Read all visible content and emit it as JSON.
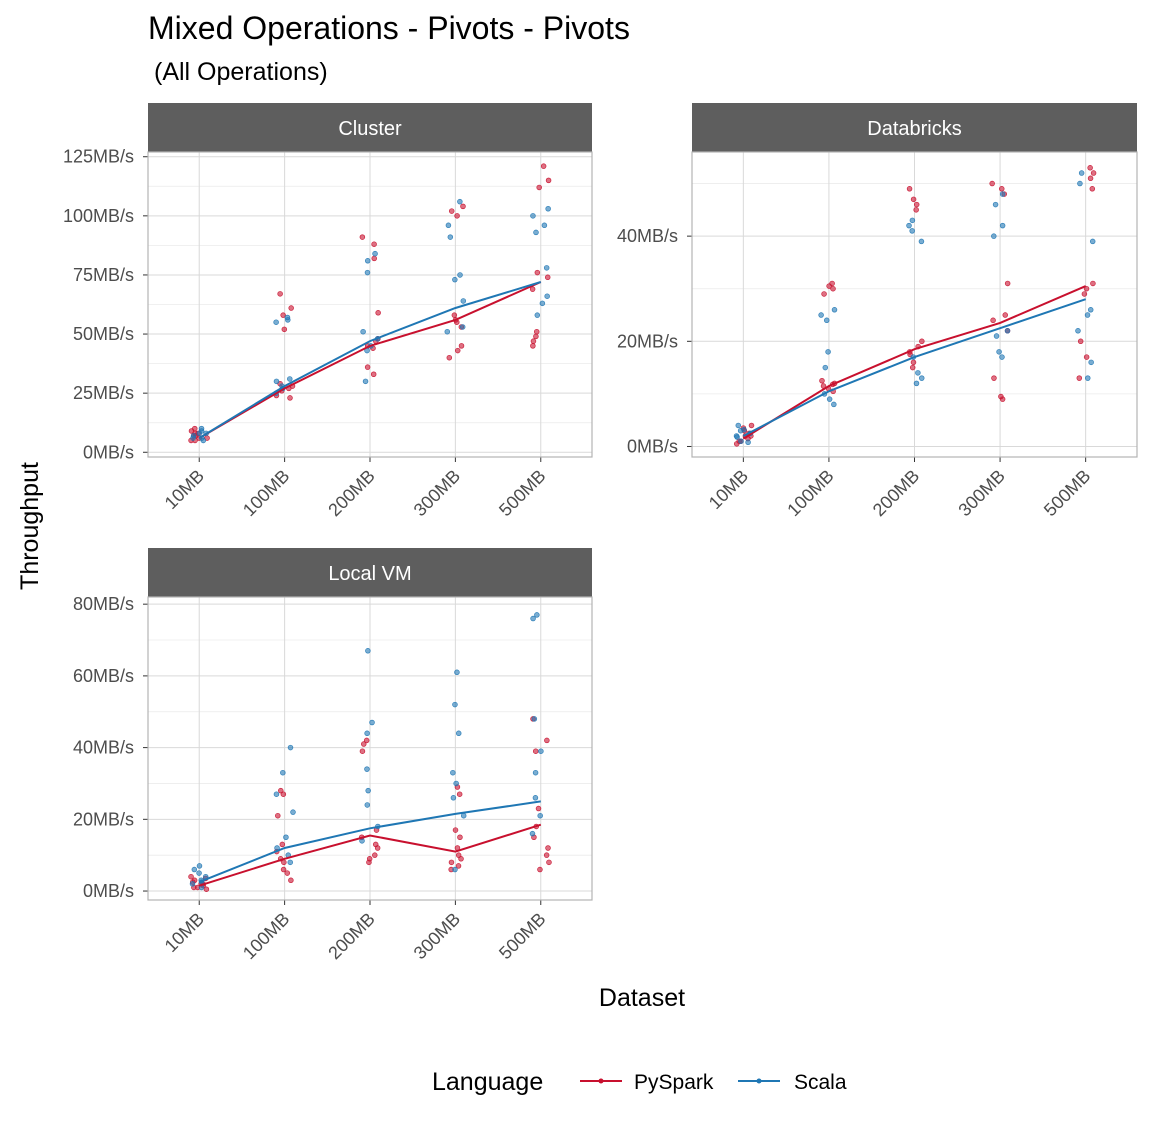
{
  "title": "Mixed Operations - Pivots - Pivots",
  "subtitle": "(All Operations)",
  "xlabel": "Dataset",
  "ylabel": "Throughput",
  "legend": {
    "title": "Language",
    "items": [
      {
        "label": "PySpark",
        "color": "#c8102e"
      },
      {
        "label": "Scala",
        "color": "#1f77b4"
      }
    ]
  },
  "chart_data": {
    "type": "line",
    "categories": [
      "10MB",
      "100MB",
      "200MB",
      "300MB",
      "500MB"
    ],
    "panels": [
      {
        "name": "Cluster",
        "unit": "MB/s",
        "ylim": [
          0,
          125
        ],
        "yticks": [
          0,
          25,
          50,
          75,
          100,
          125
        ],
        "ytick_labels": [
          "0MB/s",
          "25MB/s",
          "50MB/s",
          "75MB/s",
          "100MB/s",
          "125MB/s"
        ],
        "series": [
          {
            "name": "PySpark",
            "values": [
              6,
              27,
              45,
              56,
              72
            ],
            "points": [
              [
                8,
                6,
                10,
                5,
                7,
                9,
                6,
                5,
                8,
                7
              ],
              [
                29,
                26,
                24,
                28,
                23,
                67,
                61,
                58,
                52,
                27
              ],
              [
                45,
                36,
                33,
                88,
                82,
                91,
                59,
                47,
                48,
                44
              ],
              [
                104,
                102,
                100,
                43,
                40,
                45,
                56,
                53,
                55,
                58
              ],
              [
                115,
                112,
                121,
                74,
                76,
                69,
                51,
                49,
                47,
                45
              ]
            ]
          },
          {
            "name": "Scala",
            "values": [
              6,
              28,
              47,
              61,
              72
            ],
            "points": [
              [
                9,
                8,
                6,
                7,
                5,
                10,
                6,
                8
              ],
              [
                30,
                28,
                25,
                57,
                55,
                56,
                27,
                31
              ],
              [
                84,
                81,
                76,
                51,
                48,
                30,
                43,
                45
              ],
              [
                106,
                96,
                91,
                75,
                73,
                64,
                53,
                51
              ],
              [
                103,
                100,
                96,
                93,
                78,
                66,
                63,
                58
              ]
            ]
          }
        ]
      },
      {
        "name": "Databricks",
        "unit": "MB/s",
        "ylim": [
          0,
          55
        ],
        "yticks": [
          0,
          20,
          40
        ],
        "ytick_labels": [
          "0MB/s",
          "20MB/s",
          "40MB/s"
        ],
        "series": [
          {
            "name": "PySpark",
            "values": [
              1.5,
              11.5,
              18.5,
              23.5,
              30.5
            ],
            "points": [
              [
                1,
                2,
                3,
                4,
                1.5,
                2.5,
                0.5,
                3.5,
                2,
                1
              ],
              [
                11,
                12,
                11.5,
                30,
                31,
                29,
                30.5,
                10.5,
                12.5,
                11.8
              ],
              [
                18,
                19,
                20,
                45,
                47,
                49,
                46,
                16,
                15,
                17.5
              ],
              [
                50,
                49,
                48,
                25,
                24,
                22,
                9,
                9.5,
                31,
                13
              ],
              [
                53,
                52,
                51,
                49,
                31,
                30,
                29,
                20,
                17,
                13
              ]
            ]
          },
          {
            "name": "Scala",
            "values": [
              2,
              10.5,
              17,
              22.5,
              28
            ],
            "points": [
              [
                2,
                3,
                1,
                4,
                2.5,
                3.2,
                1.8,
                0.8
              ],
              [
                10,
                9,
                8,
                25,
                24,
                26,
                18,
                15
              ],
              [
                41,
                42,
                39,
                43,
                17,
                13,
                14,
                12
              ],
              [
                48,
                46,
                42,
                40,
                22,
                21,
                18,
                17
              ],
              [
                50,
                52,
                39,
                26,
                25,
                22,
                16,
                13
              ]
            ]
          }
        ]
      },
      {
        "name": "Local VM",
        "unit": "MB/s",
        "ylim": [
          0,
          80
        ],
        "yticks": [
          0,
          20,
          40,
          60,
          80
        ],
        "ytick_labels": [
          "0MB/s",
          "20MB/s",
          "40MB/s",
          "60MB/s",
          "80MB/s"
        ],
        "series": [
          {
            "name": "PySpark",
            "values": [
              1.5,
              9,
              15.5,
              11,
              18.5
            ],
            "points": [
              [
                1,
                2,
                3,
                4,
                1.5,
                2.5,
                0.5,
                3.5,
                2,
                1
              ],
              [
                28,
                27,
                21,
                8,
                5,
                3,
                9,
                11,
                13,
                6
              ],
              [
                42,
                41,
                39,
                15,
                12,
                10,
                8,
                13,
                17,
                9
              ],
              [
                29,
                27,
                15,
                12,
                8,
                7,
                9,
                10,
                6,
                17
              ],
              [
                48,
                42,
                39,
                18,
                15,
                12,
                10,
                8,
                6,
                23
              ]
            ]
          },
          {
            "name": "Scala",
            "values": [
              2.5,
              12,
              17.5,
              21.5,
              25
            ],
            "points": [
              [
                5,
                3,
                2,
                1,
                4,
                7,
                6,
                2.5
              ],
              [
                40,
                33,
                27,
                22,
                15,
                12,
                10,
                8
              ],
              [
                67,
                47,
                44,
                34,
                28,
                24,
                18,
                14
              ],
              [
                61,
                52,
                44,
                33,
                30,
                26,
                21,
                6
              ],
              [
                77,
                76,
                48,
                39,
                33,
                26,
                21,
                16
              ]
            ]
          }
        ]
      }
    ]
  }
}
